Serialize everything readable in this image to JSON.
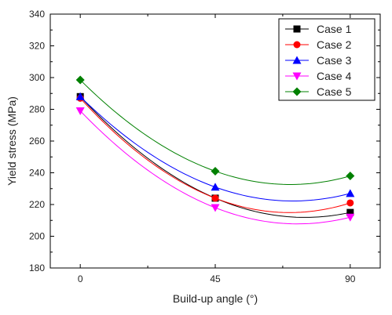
{
  "chart_data": {
    "type": "line",
    "title": "",
    "xlabel": "Build-up angle (°)",
    "ylabel": "Yield stress (MPa)",
    "x": [
      0,
      45,
      90
    ],
    "xticks": [
      "0",
      "45",
      "90"
    ],
    "xlim": [
      -10,
      100
    ],
    "ylim": [
      180,
      340
    ],
    "yticks": [
      "180",
      "200",
      "220",
      "240",
      "260",
      "280",
      "300",
      "320",
      "340"
    ],
    "grid": false,
    "legend_position": "top-right",
    "series": [
      {
        "name": "Case 1",
        "values": [
          288,
          224,
          215
        ],
        "color": "#000000",
        "marker": "square"
      },
      {
        "name": "Case 2",
        "values": [
          287,
          224,
          221
        ],
        "color": "#ff0000",
        "marker": "circle"
      },
      {
        "name": "Case 3",
        "values": [
          288,
          231,
          227
        ],
        "color": "#0000ff",
        "marker": "triangle-up"
      },
      {
        "name": "Case 4",
        "values": [
          279,
          218,
          212
        ],
        "color": "#ff00ff",
        "marker": "triangle-down"
      },
      {
        "name": "Case 5",
        "values": [
          298.5,
          241,
          238
        ],
        "color": "#008000",
        "marker": "diamond"
      }
    ]
  }
}
